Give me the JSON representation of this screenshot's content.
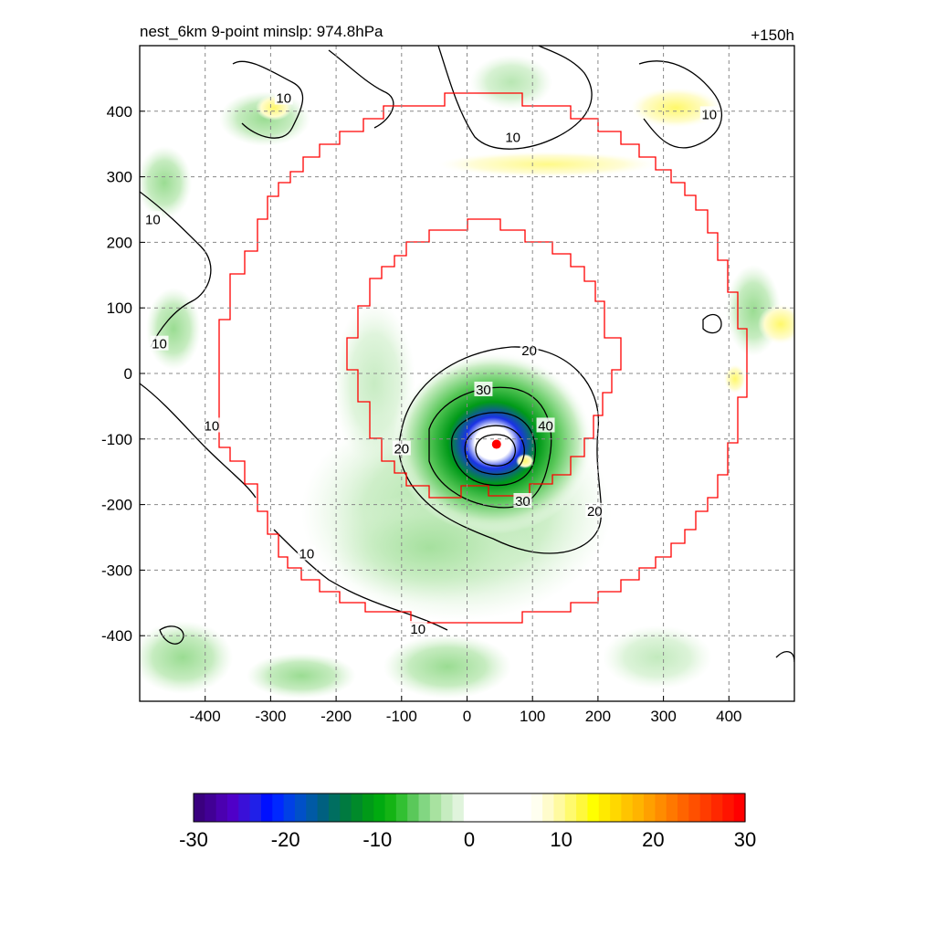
{
  "chart_data": {
    "type": "heatmap",
    "title_left": "nest_6km  9-point minslp: 974.8hPa",
    "title_right": "+150h",
    "xlim": [
      -500,
      500
    ],
    "ylim": [
      -500,
      500
    ],
    "xticks": [
      -400,
      -300,
      -200,
      -100,
      0,
      100,
      200,
      300,
      400
    ],
    "yticks": [
      400,
      300,
      200,
      100,
      0,
      -100,
      -200,
      -300,
      -400
    ],
    "grid": true,
    "storm_center": {
      "x": 45,
      "y": -108
    },
    "nest_boundaries": {
      "outer_radius": 410,
      "inner_radius": 185,
      "inner_center": [
        20,
        20
      ]
    },
    "contour_labels": [
      {
        "text": "10",
        "x": -280,
        "y": 420
      },
      {
        "text": "10",
        "x": 70,
        "y": 360
      },
      {
        "text": "10",
        "x": 370,
        "y": 395
      },
      {
        "text": "10",
        "x": -480,
        "y": 235
      },
      {
        "text": "10",
        "x": -470,
        "y": 45
      },
      {
        "text": "10",
        "x": -390,
        "y": -80
      },
      {
        "text": "10",
        "x": -245,
        "y": -275
      },
      {
        "text": "10",
        "x": -75,
        "y": -390
      },
      {
        "text": "20",
        "x": 95,
        "y": 35
      },
      {
        "text": "30",
        "x": 25,
        "y": -25
      },
      {
        "text": "40",
        "x": 120,
        "y": -80
      },
      {
        "text": "20",
        "x": -100,
        "y": -115
      },
      {
        "text": "30",
        "x": 85,
        "y": -195
      },
      {
        "text": "20",
        "x": 195,
        "y": -210
      }
    ],
    "colorbar": {
      "min": -30,
      "max": 30,
      "tick_values": [
        -30,
        -20,
        -10,
        0,
        10,
        20,
        30
      ],
      "tick_labels": [
        "-30",
        "-20",
        "-10",
        "0",
        "10",
        "20",
        "30"
      ],
      "colors": [
        "#3a007f",
        "#410095",
        "#4b00b0",
        "#4f00c8",
        "#3a10d8",
        "#2020e8",
        "#0010ff",
        "#0028ff",
        "#0040e6",
        "#0050c8",
        "#005aa5",
        "#006080",
        "#006e60",
        "#007a40",
        "#008a2a",
        "#009a18",
        "#00aa10",
        "#14b414",
        "#32c032",
        "#5ac85a",
        "#82d682",
        "#a8e2a0",
        "#c6ecc0",
        "#e0f4dc",
        "#ffffff",
        "#ffffff",
        "#ffffff",
        "#ffffff",
        "#ffffff",
        "#ffffff",
        "#fffff0",
        "#fffccc",
        "#fffaa0",
        "#fffa6e",
        "#fff83c",
        "#ffff00",
        "#ffea00",
        "#ffd800",
        "#ffc400",
        "#ffb400",
        "#ffa000",
        "#ff8c00",
        "#ff7800",
        "#ff6400",
        "#ff5000",
        "#ff3c00",
        "#ff2800",
        "#ff1400",
        "#ff0000"
      ]
    },
    "series": []
  }
}
